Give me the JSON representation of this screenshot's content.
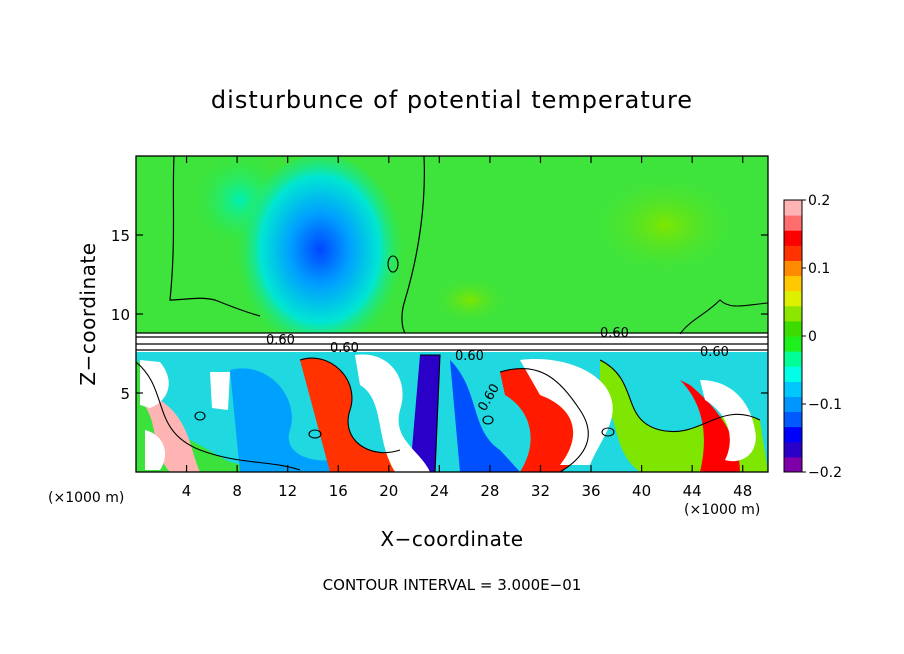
{
  "chart_data": {
    "type": "heatmap",
    "title": "disturbunce of potential temperature",
    "xlabel": "X−coordinate",
    "ylabel": "Z−coordinate",
    "x_unit_label": "(×1000 m)",
    "x_ticks": [
      4,
      8,
      12,
      16,
      20,
      24,
      28,
      32,
      36,
      40,
      44,
      48
    ],
    "y_ticks": [
      5,
      10,
      15
    ],
    "xlim": [
      0,
      50
    ],
    "ylim": [
      0,
      20
    ],
    "colorbar": {
      "ticks": [
        0.2,
        0.1,
        0,
        -0.1,
        -0.2
      ],
      "tick_labels": [
        "0.2",
        "0.1",
        "0",
        "−0.1",
        "−0.2"
      ],
      "range": [
        -0.2,
        0.2
      ],
      "colors": [
        "#7f00a8",
        "#2a00c8",
        "#0000ff",
        "#005aff",
        "#0096ff",
        "#00c8ff",
        "#00ffe6",
        "#00ff96",
        "#1ef01e",
        "#3cdc00",
        "#8ce600",
        "#dcf000",
        "#ffc800",
        "#ff8c00",
        "#ff3200",
        "#ff0000",
        "#ff6e6e",
        "#ffb4b4"
      ]
    },
    "contour_labels": [
      "0.60",
      "0.60",
      "0.60",
      "0.60",
      "0.60",
      "0.60"
    ],
    "contour_interval_text": "CONTOUR INTERVAL = 3.000E−01"
  }
}
